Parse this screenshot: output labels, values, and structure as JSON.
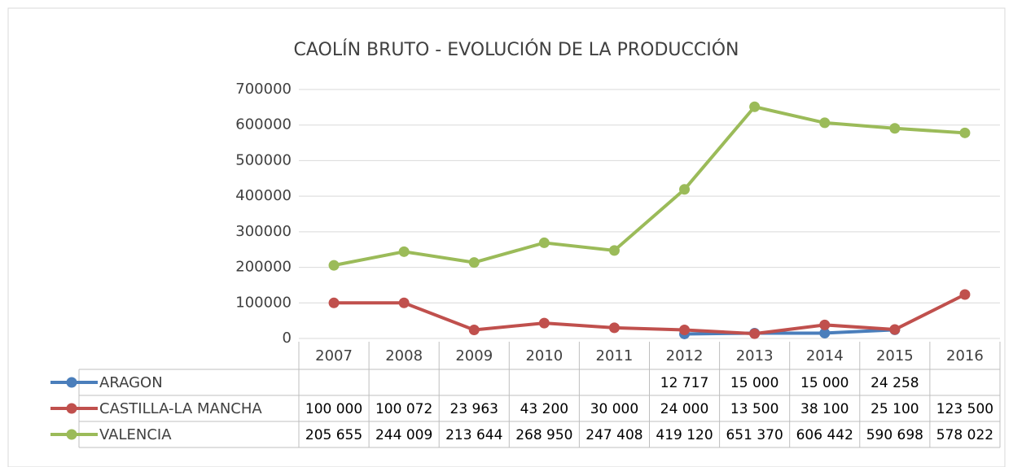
{
  "chart_data": {
    "type": "line",
    "title": "CAOLÍN BRUTO - EVOLUCIÓN DE LA PRODUCCIÓN",
    "categories": [
      "2007",
      "2008",
      "2009",
      "2010",
      "2011",
      "2012",
      "2013",
      "2014",
      "2015",
      "2016"
    ],
    "series": [
      {
        "name": "ARAGON",
        "color": "#4a7ebb",
        "values": [
          null,
          null,
          null,
          null,
          null,
          12717,
          15000,
          15000,
          24258,
          null
        ],
        "value_labels": [
          null,
          null,
          null,
          null,
          null,
          "12 717",
          "15 000",
          "15 000",
          "24 258",
          null
        ]
      },
      {
        "name": "CASTILLA-LA MANCHA",
        "color": "#c0504d",
        "values": [
          100000,
          100072,
          23963,
          43200,
          30000,
          24000,
          13500,
          38100,
          25100,
          123500
        ],
        "value_labels": [
          "100 000",
          "100 072",
          "23 963",
          "43 200",
          "30 000",
          "24 000",
          "13 500",
          "38 100",
          "25 100",
          "123 500"
        ]
      },
      {
        "name": "VALENCIA",
        "color": "#9bbb59",
        "values": [
          205655,
          244009,
          213644,
          268950,
          247408,
          419120,
          651370,
          606442,
          590698,
          578022
        ],
        "value_labels": [
          "205 655",
          "244 009",
          "213 644",
          "268 950",
          "247 408",
          "419 120",
          "651 370",
          "606 442",
          "590 698",
          "578 022"
        ]
      }
    ],
    "ylim": [
      0,
      700000
    ],
    "yticks": [
      0,
      100000,
      200000,
      300000,
      400000,
      500000,
      600000,
      700000
    ],
    "grid": true
  }
}
